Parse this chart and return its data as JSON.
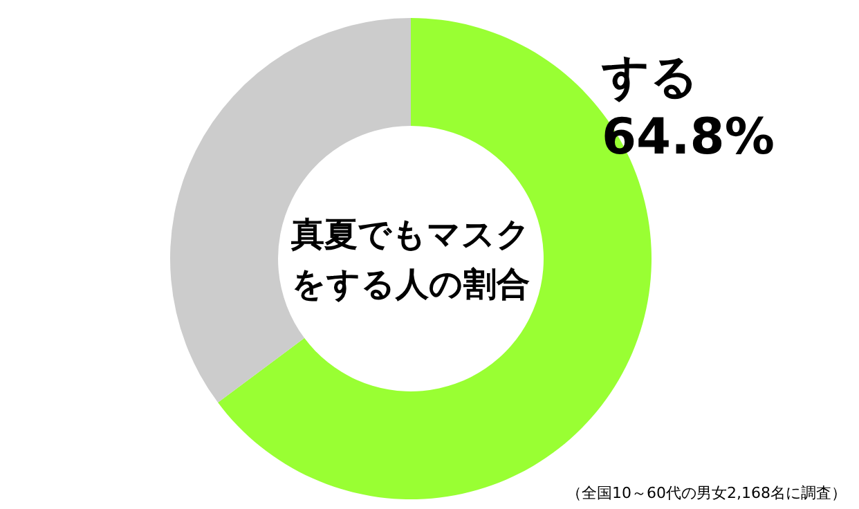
{
  "chart_data": {
    "type": "donut",
    "title": "真夏でもマスクをする人の割合",
    "categories": [
      "する",
      null
    ],
    "values": [
      64.8,
      35.2
    ],
    "colors": [
      "#99ff33",
      "#cccccc"
    ],
    "value_labels": [
      "64.8%",
      null
    ],
    "annotations": [
      "（全国10～60代の男女2,168名に調査）"
    ]
  }
}
